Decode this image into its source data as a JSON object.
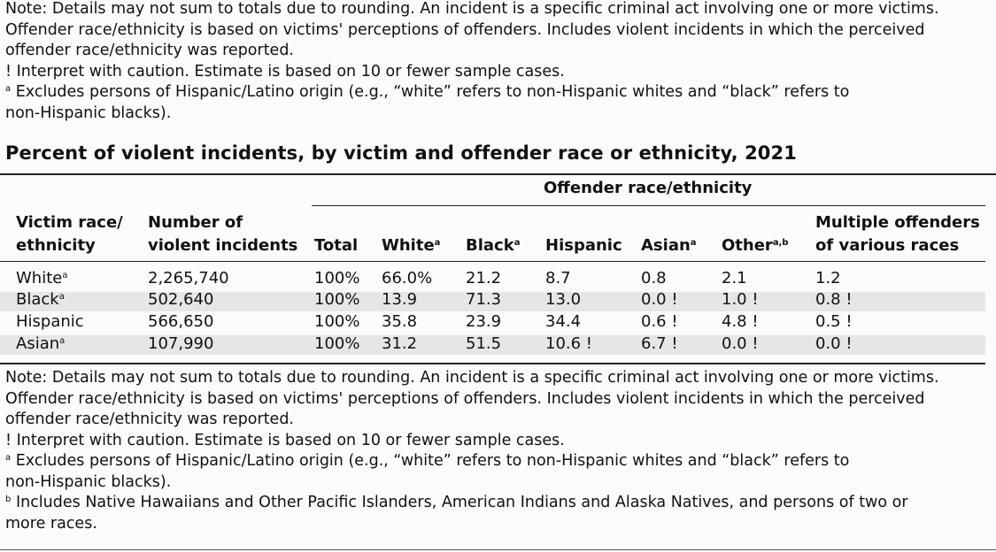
{
  "notes_top": {
    "rounding": "Note: Details may not sum to totals due to rounding. An incident is a specific criminal act involving one or more victims.",
    "perception_line1": "Offender race/ethnicity is based on victims' perceptions of offenders. Includes violent incidents in which the perceived",
    "perception_line2": "offender race/ethnicity was reported.",
    "caution": "! Interpret with caution. Estimate is based on 10 or fewer sample cases.",
    "footnote_a_marker": "a",
    "footnote_a_line1": "Excludes persons of Hispanic/Latino origin (e.g., “white” refers to non-Hispanic whites and “black” refers to",
    "footnote_a_line2": "non-Hispanic blacks)."
  },
  "table": {
    "title": "Percent of violent incidents, by victim and offender race or ethnicity, 2021",
    "group_header": "Offender race/ethnicity",
    "headers": {
      "victim_line1": "Victim race/",
      "victim_line2": "ethnicity",
      "incidents_line1": "Number of",
      "incidents_line2": "violent incidents",
      "total": "Total",
      "white": "White",
      "black": "Black",
      "hispanic": "Hispanic",
      "asian": "Asian",
      "other": "Other",
      "multiple_line1": "Multiple offenders",
      "multiple_line2": "of various races",
      "sup_a": "a",
      "sup_ab": "a,b"
    },
    "rows": [
      {
        "victim": "White",
        "sup": "a",
        "incidents": "2,265,740",
        "total": "100%",
        "white": "66.0%",
        "black": "21.2",
        "hispanic": "8.7",
        "asian": "0.8",
        "other": "2.1",
        "multiple": "1.2"
      },
      {
        "victim": "Black",
        "sup": "a",
        "incidents": "502,640",
        "total": "100%",
        "white": "13.9",
        "black": "71.3",
        "hispanic": "13.0",
        "asian": "0.0 !",
        "other": "1.0 !",
        "multiple": "0.8 !"
      },
      {
        "victim": "Hispanic",
        "sup": "",
        "incidents": "566,650",
        "total": "100%",
        "white": "35.8",
        "black": "23.9",
        "hispanic": "34.4",
        "asian": "0.6 !",
        "other": "4.8 !",
        "multiple": "0.5 !"
      },
      {
        "victim": "Asian",
        "sup": "a",
        "incidents": "107,990",
        "total": "100%",
        "white": "31.2",
        "black": "51.5",
        "hispanic": "10.6 !",
        "asian": "6.7 !",
        "other": "0.0 !",
        "multiple": "0.0 !"
      }
    ]
  },
  "notes_bottom": {
    "rounding": "Note: Details may not sum to totals due to rounding. An incident is a specific criminal act involving one or more victims.",
    "perception_line1": "Offender race/ethnicity is based on victims' perceptions of offenders. Includes violent incidents in which the perceived",
    "perception_line2": "offender race/ethnicity was reported.",
    "caution": "! Interpret with caution. Estimate is based on 10 or fewer sample cases.",
    "footnote_a_marker": "a",
    "footnote_a_line1": "Excludes persons of Hispanic/Latino origin (e.g., “white” refers to non-Hispanic whites and “black” refers to",
    "footnote_a_line2": "non-Hispanic blacks).",
    "footnote_b_marker": "b",
    "footnote_b_line1": "Includes Native Hawaiians and Other Pacific Islanders, American Indians and Alaska Natives, and persons of two or",
    "footnote_b_line2": "more races."
  }
}
